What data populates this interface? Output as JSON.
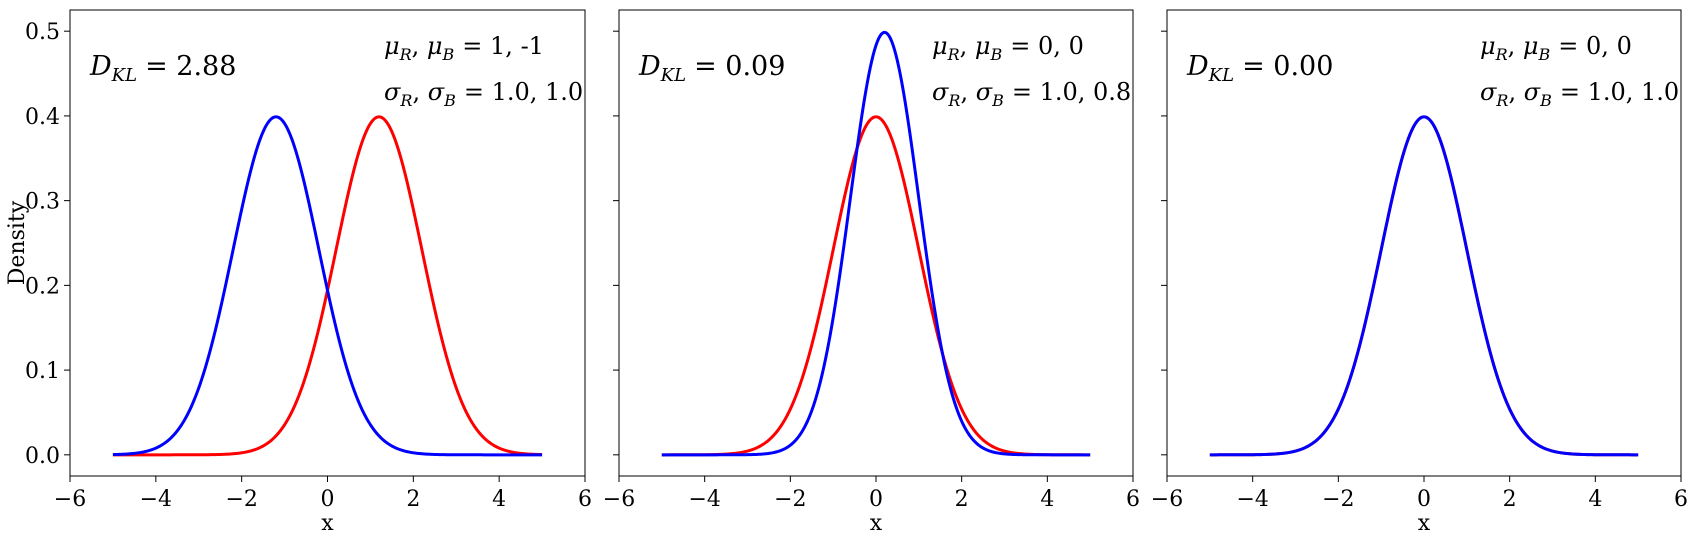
{
  "chart_data": [
    {
      "type": "line",
      "xlabel": "x",
      "ylabel": "Density",
      "xlim": [
        -6,
        6
      ],
      "ylim": [
        -0.025,
        0.525
      ],
      "xticks": [
        -6,
        -4,
        -2,
        0,
        2,
        4,
        6
      ],
      "xtick_labels": [
        "−6",
        "−4",
        "−2",
        "0",
        "2",
        "4",
        "6"
      ],
      "yticks": [
        0.0,
        0.1,
        0.2,
        0.3,
        0.4,
        0.5
      ],
      "ytick_labels": [
        "0.0",
        "0.1",
        "0.2",
        "0.3",
        "0.4",
        "0.5"
      ],
      "x_range": [
        -5,
        5
      ],
      "annotation_kl": {
        "name": "D",
        "sub": "KL",
        "value": "= 2.88"
      },
      "annotation_mu": {
        "s1": "μ",
        "sub1": "R",
        "s2": "μ",
        "sub2": "B",
        "value": "= 1, -1"
      },
      "annotation_sigma": {
        "s1": "σ",
        "sub1": "R",
        "s2": "σ",
        "sub2": "B",
        "value": "= 1.0, 1.0"
      },
      "series": [
        {
          "color": "#ff0000",
          "mu": 1.2,
          "sigma": 1.0
        },
        {
          "color": "#0000ff",
          "mu": -1.2,
          "sigma": 1.0
        }
      ]
    },
    {
      "type": "line",
      "xlabel": "x",
      "xlim": [
        -6,
        6
      ],
      "ylim": [
        -0.025,
        0.525
      ],
      "xticks": [
        -6,
        -4,
        -2,
        0,
        2,
        4,
        6
      ],
      "xtick_labels": [
        "−6",
        "−4",
        "−2",
        "0",
        "2",
        "4",
        "6"
      ],
      "yticks": [
        0.0,
        0.1,
        0.2,
        0.3,
        0.4,
        0.5
      ],
      "x_range": [
        -5,
        5
      ],
      "annotation_kl": {
        "name": "D",
        "sub": "KL",
        "value": "= 0.09"
      },
      "annotation_mu": {
        "s1": "μ",
        "sub1": "R",
        "s2": "μ",
        "sub2": "B",
        "value": "= 0, 0"
      },
      "annotation_sigma": {
        "s1": "σ",
        "sub1": "R",
        "s2": "σ",
        "sub2": "B",
        "value": "= 1.0, 0.8"
      },
      "series": [
        {
          "color": "#ff0000",
          "mu": 0.0,
          "sigma": 1.0
        },
        {
          "color": "#0000ff",
          "mu": 0.2,
          "sigma": 0.8
        }
      ]
    },
    {
      "type": "line",
      "xlabel": "x",
      "xlim": [
        -6,
        6
      ],
      "ylim": [
        -0.025,
        0.525
      ],
      "xticks": [
        -6,
        -4,
        -2,
        0,
        2,
        4,
        6
      ],
      "xtick_labels": [
        "−6",
        "−4",
        "−2",
        "0",
        "2",
        "4",
        "6"
      ],
      "yticks": [
        0.0,
        0.1,
        0.2,
        0.3,
        0.4,
        0.5
      ],
      "x_range": [
        -5,
        5
      ],
      "annotation_kl": {
        "name": "D",
        "sub": "KL",
        "value": "= 0.00"
      },
      "annotation_mu": {
        "s1": "μ",
        "sub1": "R",
        "s2": "μ",
        "sub2": "B",
        "value": "= 0, 0"
      },
      "annotation_sigma": {
        "s1": "σ",
        "sub1": "R",
        "s2": "σ",
        "sub2": "B",
        "value": "= 1.0, 1.0"
      },
      "series": [
        {
          "color": "#ff0000",
          "mu": 0.0,
          "sigma": 1.0
        },
        {
          "color": "#0000ff",
          "mu": 0.0,
          "sigma": 1.0
        }
      ]
    }
  ]
}
